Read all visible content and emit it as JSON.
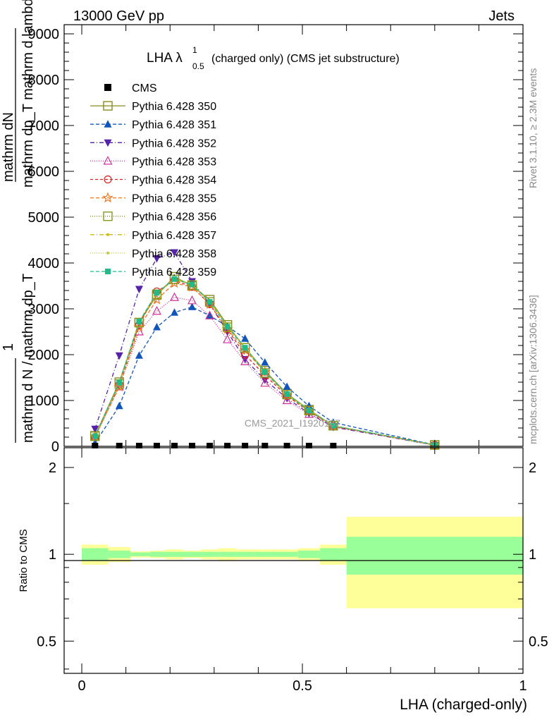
{
  "header": {
    "left": "13000 GeV pp",
    "right": "Jets"
  },
  "side_labels": {
    "rivet": "Rivet 3.1.10, ≥ 2.3M events",
    "mcplots": "mcplots.cern.ch [arXiv:1306.3436]"
  },
  "watermark": "CMS_2021_I1920187",
  "chart_data": [
    {
      "type": "line",
      "panel": "main",
      "title_main": "LHA λ",
      "title_sup": "1",
      "title_sub": "0.5",
      "title_rest": "(charged only) (CMS jet substructure)",
      "ylabel_top": "mathrm dN",
      "ylabel_top_den": "mathrm dp_T mathrm d lambda",
      "ylabel_bot_num": "1",
      "ylabel_bot_den": "mathrm d N / mathrm dp_T",
      "xlim": [
        -0.04,
        1.0
      ],
      "ylim": [
        0,
        9200
      ],
      "yticks": [
        0,
        1000,
        2000,
        3000,
        4000,
        5000,
        6000,
        7000,
        8000,
        9000
      ],
      "ytick_labels": [
        "0",
        "1000",
        "2000",
        "3000",
        "4000",
        "5000",
        "6000",
        "7000",
        "8000",
        "9000"
      ],
      "x": [
        0.03,
        0.085,
        0.13,
        0.17,
        0.21,
        0.25,
        0.29,
        0.33,
        0.37,
        0.415,
        0.465,
        0.515,
        0.57,
        0.8
      ],
      "data_series": {
        "name": "CMS",
        "x": [
          0.03,
          0.085,
          0.13,
          0.17,
          0.21,
          0.25,
          0.29,
          0.33,
          0.37,
          0.415,
          0.465,
          0.515,
          0.57
        ],
        "values": [
          0,
          0,
          0,
          0,
          0,
          0,
          0,
          0,
          0,
          0,
          0,
          0,
          0
        ]
      },
      "series": [
        {
          "name": "Pythia 6.428 350",
          "color": "#8a8a1e",
          "marker": "square-open",
          "dash": "",
          "values": [
            230,
            1400,
            2700,
            3300,
            3700,
            3500,
            3200,
            2650,
            2150,
            1650,
            1150,
            800,
            450,
            30
          ]
        },
        {
          "name": "Pythia 6.428 351",
          "color": "#1155bb",
          "marker": "triangle-up",
          "dash": "5,3",
          "values": [
            70,
            880,
            1980,
            2600,
            2920,
            3040,
            2850,
            2620,
            2350,
            1830,
            1300,
            880,
            520,
            30
          ]
        },
        {
          "name": "Pythia 6.428 352",
          "color": "#5522aa",
          "marker": "triangle-down",
          "dash": "6,3,1,3",
          "values": [
            380,
            1980,
            3430,
            4100,
            4230,
            3600,
            3100,
            2500,
            1900,
            1450,
            1050,
            720,
            420,
            25
          ]
        },
        {
          "name": "Pythia 6.428 353",
          "color": "#cc3399",
          "marker": "triangle-up-open",
          "dash": "1,2",
          "values": [
            200,
            1300,
            2500,
            2950,
            3250,
            3180,
            2850,
            2330,
            1850,
            1380,
            1000,
            700,
            430,
            25
          ]
        },
        {
          "name": "Pythia 6.428 354",
          "color": "#dd2222",
          "marker": "circle-open",
          "dash": "4,3",
          "values": [
            200,
            1350,
            2650,
            3380,
            3620,
            3480,
            3100,
            2550,
            2000,
            1550,
            1100,
            760,
            440,
            28
          ]
        },
        {
          "name": "Pythia 6.428 355",
          "color": "#ee7722",
          "marker": "star-open",
          "dash": "5,3",
          "values": [
            210,
            1300,
            2600,
            3200,
            3560,
            3480,
            3100,
            2560,
            2100,
            1620,
            1120,
            770,
            440,
            28
          ]
        },
        {
          "name": "Pythia 6.428 356",
          "color": "#889922",
          "marker": "square-open",
          "dash": "1,2",
          "values": [
            220,
            1360,
            2700,
            3320,
            3640,
            3520,
            3150,
            2600,
            2150,
            1600,
            1130,
            780,
            450,
            29
          ]
        },
        {
          "name": "Pythia 6.428 357",
          "color": "#ccbb11",
          "marker": "dot",
          "dash": "6,3,1,3",
          "values": [
            215,
            1370,
            2720,
            3330,
            3650,
            3530,
            3160,
            2620,
            2160,
            1620,
            1140,
            790,
            450,
            29
          ]
        },
        {
          "name": "Pythia 6.428 358",
          "color": "#bbcc33",
          "marker": "dot",
          "dash": "1,2",
          "values": [
            215,
            1380,
            2730,
            3340,
            3660,
            3540,
            3170,
            2630,
            2170,
            1630,
            1150,
            790,
            450,
            29
          ]
        },
        {
          "name": "Pythia 6.428 359",
          "color": "#22bb88",
          "marker": "square",
          "dash": "5,3",
          "values": [
            220,
            1390,
            2720,
            3350,
            3650,
            3530,
            3150,
            2610,
            2150,
            1620,
            1140,
            780,
            450,
            29
          ]
        }
      ],
      "legend_placement": "top-left"
    },
    {
      "type": "area",
      "panel": "ratio",
      "ylabel": "Ratio to CMS",
      "xlabel": "LHA (charged-only)",
      "xlim": [
        -0.04,
        1.0
      ],
      "ylim": [
        0.3865,
        2.342
      ],
      "yticks": [
        0.5,
        1,
        2
      ],
      "ytick_labels": [
        "0.5",
        "1",
        "2"
      ],
      "xticks": [
        0,
        0.5,
        1
      ],
      "xtick_labels": [
        "0",
        "0.5",
        "1"
      ],
      "bins": [
        0.0,
        0.06,
        0.11,
        0.155,
        0.19,
        0.23,
        0.27,
        0.31,
        0.35,
        0.39,
        0.44,
        0.49,
        0.54,
        0.6,
        1.0
      ],
      "band_inner": [
        0.05,
        0.03,
        0.015,
        0.02,
        0.02,
        0.02,
        0.02,
        0.02,
        0.02,
        0.02,
        0.02,
        0.03,
        0.05,
        0.15
      ],
      "band_outer": [
        0.08,
        0.06,
        0.025,
        0.03,
        0.04,
        0.03,
        0.04,
        0.05,
        0.04,
        0.04,
        0.04,
        0.05,
        0.08,
        0.35
      ],
      "colors": {
        "inner": "#99ff99",
        "outer": "#ffff99"
      }
    }
  ]
}
